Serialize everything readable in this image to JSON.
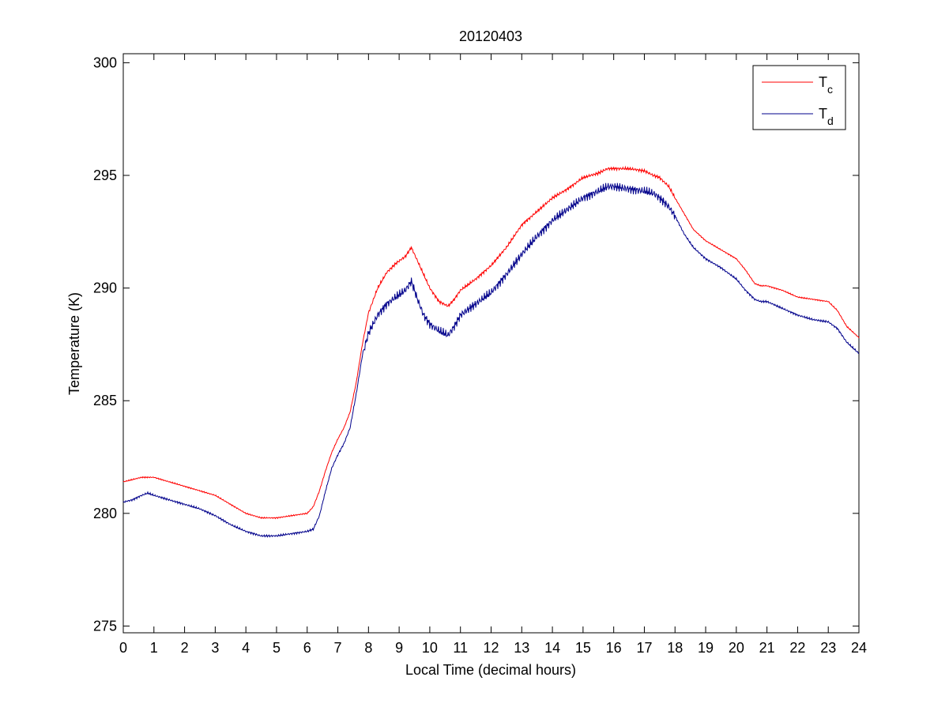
{
  "chart_data": {
    "type": "line",
    "title": "20120403",
    "xlabel": "Local Time (decimal hours)",
    "ylabel": "Temperature (K)",
    "xlim": [
      0,
      24
    ],
    "ylim": [
      274.7,
      300.4
    ],
    "xticks": [
      0,
      1,
      2,
      3,
      4,
      5,
      6,
      7,
      8,
      9,
      10,
      11,
      12,
      13,
      14,
      15,
      16,
      17,
      18,
      19,
      20,
      21,
      22,
      23,
      24
    ],
    "yticks": [
      275,
      280,
      285,
      290,
      295,
      300
    ],
    "grid": false,
    "legend_position": "top-right",
    "series": [
      {
        "name": "T",
        "subscript": "c",
        "color": "#ff0000",
        "x": [
          0,
          0.3,
          0.6,
          0.8,
          1.0,
          1.5,
          2.0,
          2.5,
          3.0,
          3.5,
          4.0,
          4.5,
          5.0,
          5.5,
          6.0,
          6.2,
          6.4,
          6.6,
          6.8,
          7.0,
          7.2,
          7.4,
          7.6,
          7.8,
          8.0,
          8.3,
          8.6,
          8.9,
          9.2,
          9.4,
          9.6,
          9.8,
          10.0,
          10.3,
          10.6,
          10.8,
          11.0,
          11.5,
          12.0,
          12.5,
          13.0,
          13.5,
          14.0,
          14.5,
          15.0,
          15.5,
          15.8,
          16.0,
          16.5,
          17.0,
          17.3,
          17.5,
          17.8,
          18.0,
          18.3,
          18.6,
          19.0,
          19.5,
          20.0,
          20.3,
          20.6,
          20.8,
          21.0,
          21.5,
          22.0,
          22.5,
          23.0,
          23.3,
          23.6,
          24.0
        ],
        "y": [
          281.4,
          281.5,
          281.6,
          281.6,
          281.6,
          281.4,
          281.2,
          281.0,
          280.8,
          280.4,
          280.0,
          279.8,
          279.8,
          279.9,
          280.0,
          280.3,
          281.0,
          281.9,
          282.7,
          283.3,
          283.8,
          284.5,
          285.8,
          287.5,
          288.9,
          290.0,
          290.7,
          291.1,
          291.4,
          291.8,
          291.2,
          290.6,
          290.0,
          289.4,
          289.2,
          289.5,
          289.9,
          290.4,
          291.0,
          291.8,
          292.8,
          293.4,
          294.0,
          294.4,
          294.9,
          295.1,
          295.3,
          295.3,
          295.3,
          295.2,
          295.0,
          294.9,
          294.5,
          294.0,
          293.3,
          292.6,
          292.1,
          291.7,
          291.3,
          290.8,
          290.2,
          290.1,
          290.1,
          289.9,
          289.6,
          289.5,
          289.4,
          289.0,
          288.3,
          287.8
        ]
      },
      {
        "name": "T",
        "subscript": "d",
        "color": "#00008b",
        "x": [
          0,
          0.3,
          0.6,
          0.8,
          1.0,
          1.5,
          2.0,
          2.5,
          3.0,
          3.5,
          4.0,
          4.5,
          5.0,
          5.5,
          6.0,
          6.2,
          6.4,
          6.6,
          6.8,
          7.0,
          7.2,
          7.4,
          7.6,
          7.8,
          8.0,
          8.3,
          8.6,
          8.9,
          9.2,
          9.4,
          9.6,
          9.8,
          10.0,
          10.3,
          10.6,
          10.8,
          11.0,
          11.5,
          12.0,
          12.5,
          13.0,
          13.5,
          14.0,
          14.5,
          15.0,
          15.5,
          15.8,
          16.0,
          16.5,
          17.0,
          17.3,
          17.5,
          17.8,
          18.0,
          18.3,
          18.6,
          19.0,
          19.5,
          20.0,
          20.3,
          20.6,
          20.8,
          21.0,
          21.5,
          22.0,
          22.5,
          23.0,
          23.3,
          23.6,
          24.0
        ],
        "y": [
          280.5,
          280.6,
          280.8,
          280.9,
          280.8,
          280.6,
          280.4,
          280.2,
          279.9,
          279.5,
          279.2,
          279.0,
          279.0,
          279.1,
          279.2,
          279.3,
          279.9,
          281.0,
          282.0,
          282.6,
          283.1,
          283.8,
          285.3,
          287.0,
          288.0,
          288.8,
          289.3,
          289.6,
          289.9,
          290.3,
          289.5,
          288.8,
          288.4,
          288.1,
          287.9,
          288.3,
          288.8,
          289.3,
          289.8,
          290.6,
          291.5,
          292.3,
          293.0,
          293.5,
          294.0,
          294.3,
          294.5,
          294.5,
          294.4,
          294.3,
          294.2,
          294.0,
          293.6,
          293.2,
          292.4,
          291.8,
          291.3,
          290.9,
          290.4,
          289.9,
          289.5,
          289.4,
          289.4,
          289.1,
          288.8,
          288.6,
          288.5,
          288.2,
          287.6,
          287.1
        ]
      }
    ]
  }
}
